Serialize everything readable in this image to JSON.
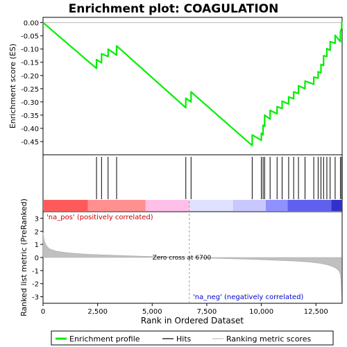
{
  "chart_data": {
    "type": "line",
    "title": "Enrichment plot: COAGULATION",
    "top_panel": {
      "ylabel": "Enrichment score (ES)",
      "ylim": [
        -0.5,
        0.02
      ],
      "yticks": [
        "0.00",
        "-0.05",
        "-0.10",
        "-0.15",
        "-0.20",
        "-0.25",
        "-0.30",
        "-0.35",
        "-0.40",
        "-0.45"
      ],
      "ytick_values": [
        0.0,
        -0.05,
        -0.1,
        -0.15,
        -0.2,
        -0.25,
        -0.3,
        -0.35,
        -0.4,
        -0.45
      ],
      "series": [
        {
          "name": "Enrichment profile",
          "color": "#00ee00",
          "x": [
            0,
            2450,
            2450,
            2680,
            2680,
            2980,
            2980,
            3370,
            3370,
            6540,
            6540,
            6780,
            6780,
            9580,
            9580,
            10000,
            10000,
            10080,
            10080,
            10150,
            10150,
            10400,
            10400,
            10720,
            10720,
            10950,
            10950,
            11250,
            11250,
            11480,
            11480,
            11700,
            11700,
            12000,
            12000,
            12400,
            12400,
            12600,
            12600,
            12730,
            12730,
            12850,
            12850,
            13000,
            13000,
            13150,
            13150,
            13380,
            13380,
            13620,
            13620,
            13680,
            13680
          ],
          "y": [
            0.0,
            -0.173,
            -0.14,
            -0.152,
            -0.118,
            -0.128,
            -0.1,
            -0.123,
            -0.088,
            -0.322,
            -0.286,
            -0.3,
            -0.262,
            -0.465,
            -0.425,
            -0.445,
            -0.418,
            -0.425,
            -0.388,
            -0.392,
            -0.35,
            -0.365,
            -0.332,
            -0.345,
            -0.318,
            -0.325,
            -0.297,
            -0.308,
            -0.281,
            -0.288,
            -0.262,
            -0.268,
            -0.239,
            -0.25,
            -0.221,
            -0.233,
            -0.206,
            -0.21,
            -0.186,
            -0.19,
            -0.158,
            -0.162,
            -0.125,
            -0.128,
            -0.098,
            -0.105,
            -0.072,
            -0.078,
            -0.048,
            -0.072,
            -0.035,
            -0.02,
            0.003
          ]
        }
      ]
    },
    "hits": {
      "name": "Hits",
      "positions": [
        2450,
        2680,
        2980,
        3370,
        6540,
        6780,
        9580,
        10000,
        10080,
        10150,
        10400,
        10720,
        10950,
        11250,
        11480,
        11700,
        12000,
        12400,
        12600,
        12730,
        12850,
        13000,
        13150,
        13380,
        13620,
        13680
      ]
    },
    "bottom_panel": {
      "name": "Ranking metric scores",
      "ylabel": "Ranked list metric (PreRanked)",
      "ylim": [
        -3.5,
        3.5
      ],
      "yticks": [
        "3",
        "2",
        "1",
        "0",
        "-1",
        "-2",
        "-3"
      ],
      "ytick_values": [
        3,
        2,
        1,
        0,
        -1,
        -2,
        -3
      ],
      "color": "#c0c0c0",
      "profile_x": [
        0,
        50,
        150,
        300,
        600,
        1000,
        1500,
        2000,
        3000,
        4000,
        5000,
        6000,
        6700,
        7500,
        8500,
        9500,
        10500,
        11500,
        12200,
        12700,
        13000,
        13200,
        13400,
        13550,
        13620,
        13650,
        13680
      ],
      "profile_y": [
        1.9,
        1.3,
        0.9,
        0.65,
        0.48,
        0.38,
        0.3,
        0.25,
        0.18,
        0.12,
        0.07,
        0.03,
        0.0,
        -0.04,
        -0.09,
        -0.14,
        -0.2,
        -0.27,
        -0.35,
        -0.45,
        -0.55,
        -0.65,
        -0.8,
        -1.0,
        -1.3,
        -1.8,
        -3.4
      ],
      "zero_cross_label": "Zero cross at 6700",
      "zero_cross_x": 6700,
      "pos_label": "'na_pos' (positively correlated)",
      "neg_label": "'na_neg' (negatively correlated)"
    },
    "xlabel": "Rank in Ordered Dataset",
    "xlim": [
      0,
      13700
    ],
    "xticks": [
      "0",
      "2,500",
      "5,000",
      "7,500",
      "10,000",
      "12,500"
    ],
    "xtick_values": [
      0,
      2500,
      5000,
      7500,
      10000,
      12500
    ],
    "colorbar_segments": [
      {
        "start": 0,
        "end": 2050,
        "color": "#ff5a5a"
      },
      {
        "start": 2050,
        "end": 4700,
        "color": "#ff9090"
      },
      {
        "start": 4700,
        "end": 6700,
        "color": "#ffc0e8"
      },
      {
        "start": 6700,
        "end": 8700,
        "color": "#e0e0ff"
      },
      {
        "start": 8700,
        "end": 10200,
        "color": "#c8c8ff"
      },
      {
        "start": 10200,
        "end": 11200,
        "color": "#9090ff"
      },
      {
        "start": 11200,
        "end": 13200,
        "color": "#6060ee"
      },
      {
        "start": 13200,
        "end": 13700,
        "color": "#3030cc"
      }
    ],
    "legend": {
      "placement": "bottom",
      "items": [
        {
          "label": "Enrichment profile",
          "color": "#00ee00",
          "kind": "thick-line"
        },
        {
          "label": "Hits",
          "color": "#000000",
          "kind": "line"
        },
        {
          "label": "Ranking metric scores",
          "color": "#c0c0c0",
          "kind": "line"
        }
      ]
    }
  }
}
